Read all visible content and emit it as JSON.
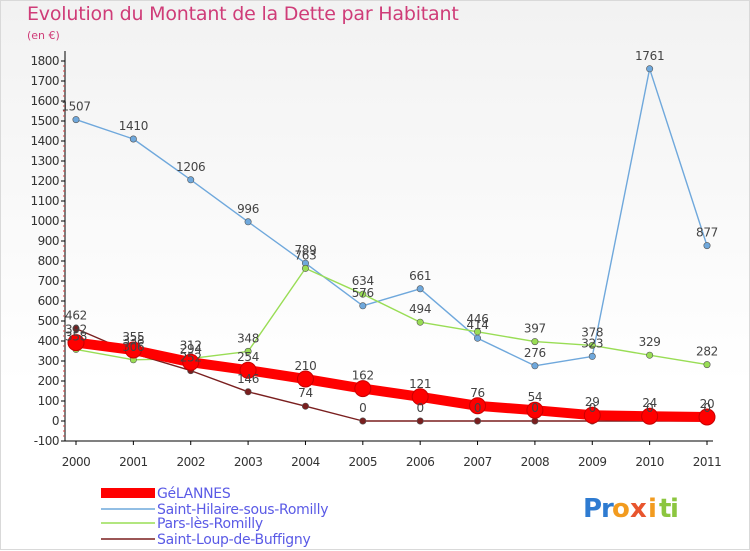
{
  "chart_data": {
    "type": "line",
    "title": "Evolution du Montant de la Dette par Habitant",
    "subtitle": "(en €)",
    "categories": [
      "2000",
      "2001",
      "2002",
      "2003",
      "2004",
      "2005",
      "2006",
      "2007",
      "2008",
      "2009",
      "2010",
      "2011"
    ],
    "ylim": [
      -100,
      1800
    ],
    "yticks": [
      "-100",
      "0",
      "100",
      "200",
      "300",
      "400",
      "500",
      "600",
      "700",
      "800",
      "900",
      "1000",
      "1100",
      "1200",
      "1300",
      "1400",
      "1500",
      "1600",
      "1700",
      "1800"
    ],
    "grid": false,
    "legend_position": "bottom-left",
    "series": [
      {
        "name": "GéLANNES",
        "color": "#ff0000",
        "values": [
          392,
          355,
          294,
          254,
          210,
          162,
          121,
          76,
          54,
          29,
          24,
          20
        ]
      },
      {
        "name": "Saint-Hilaire-sous-Romilly",
        "color": "#6fa8dc",
        "values": [
          1507,
          1410,
          1206,
          996,
          789,
          576,
          661,
          414,
          276,
          323,
          1761,
          877
        ]
      },
      {
        "name": "Pars-lès-Romilly",
        "color": "#99dd55",
        "values": [
          358,
          306,
          312,
          348,
          763,
          634,
          494,
          446,
          397,
          378,
          329,
          282
        ]
      },
      {
        "name": "Saint-Loup-de-Buffigny",
        "color": "#7a1f1f",
        "values": [
          462,
          338,
          252,
          146,
          74,
          0,
          0,
          0,
          0,
          0,
          0,
          0
        ]
      }
    ]
  },
  "logo": {
    "text": "Proxiti",
    "letters": [
      "P",
      "r",
      "o",
      "x",
      "i",
      "t",
      "i"
    ],
    "colors": [
      "#2e7bd1",
      "#2e7bd1",
      "#f29b1f",
      "#e8552e",
      "#f29b1f",
      "#8cc63f",
      "#8cc63f"
    ]
  }
}
